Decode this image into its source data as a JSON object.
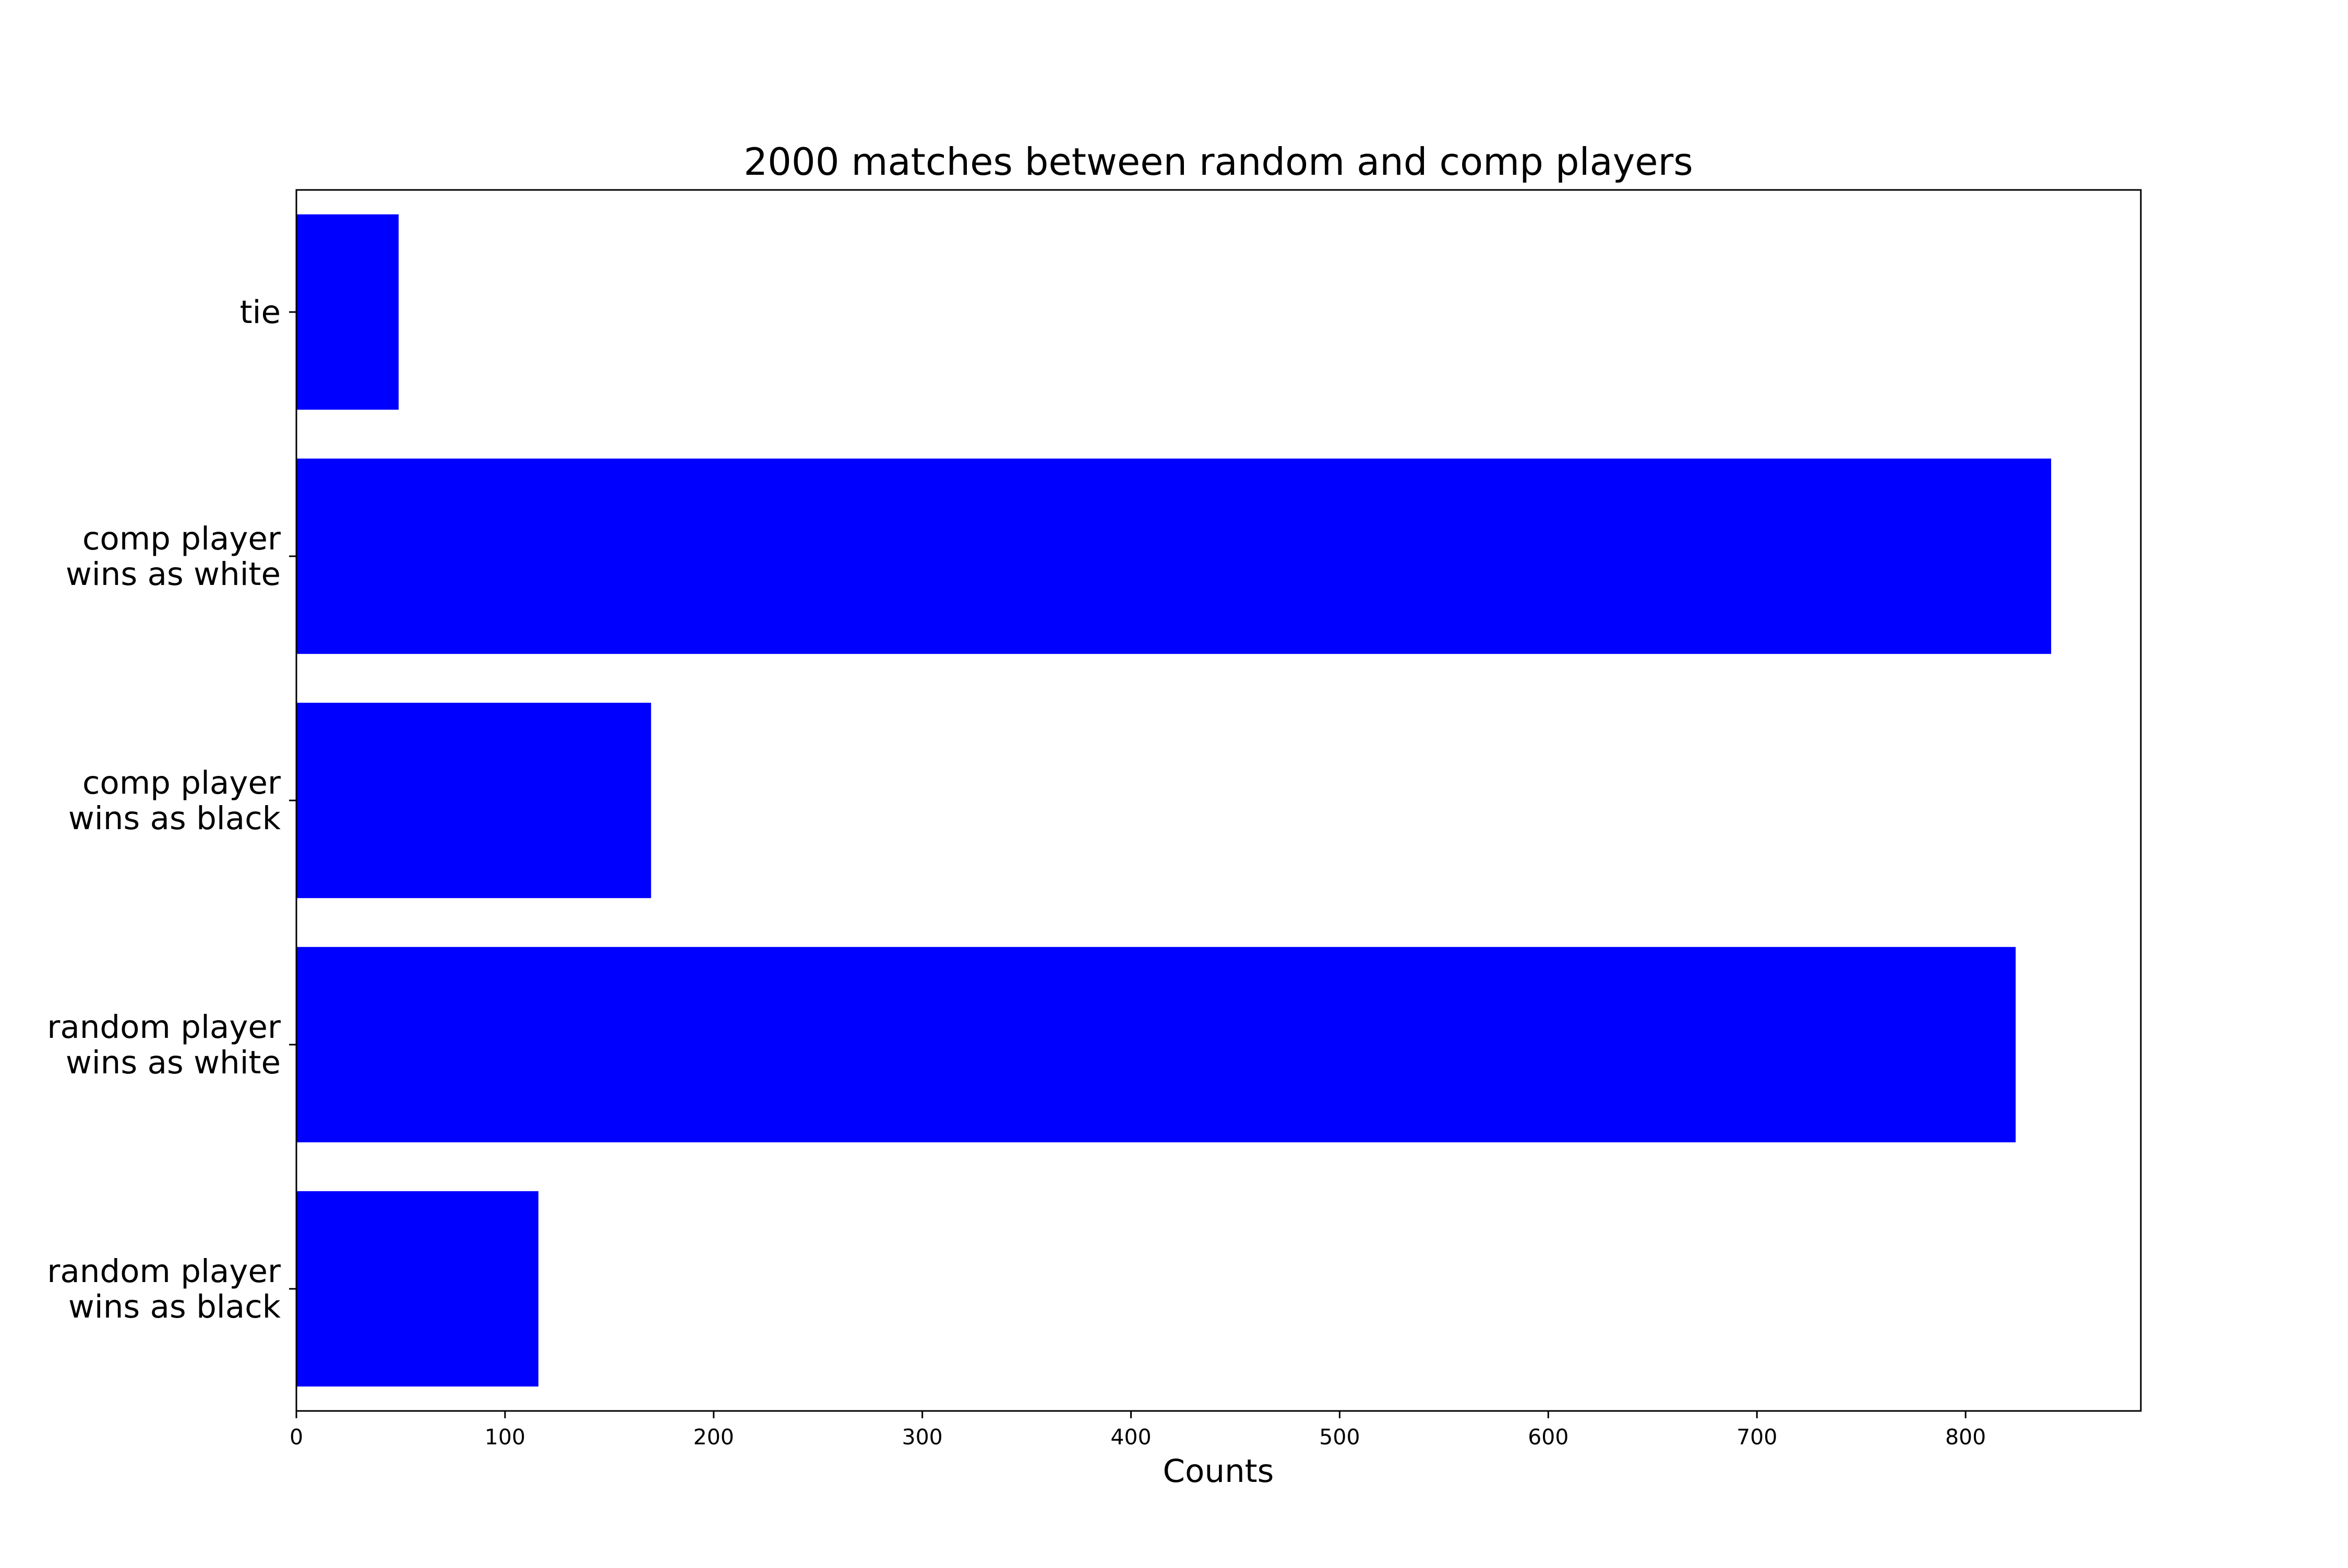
{
  "chart_data": {
    "type": "bar",
    "orientation": "horizontal",
    "title": "2000 matches between random and comp players",
    "xlabel": "Counts",
    "ylabel": "",
    "categories": [
      "tie",
      "comp player\nwins as white",
      "comp player\nwins as black",
      "random player\nwins as white",
      "random player\nwins as black"
    ],
    "values": [
      49,
      841,
      170,
      824,
      116
    ],
    "xlim": [
      0,
      884
    ],
    "xticks": [
      0,
      100,
      200,
      300,
      400,
      500,
      600,
      700,
      800
    ],
    "grid": false,
    "legend": "none",
    "bar_color": "#0000ff",
    "axes_color": "#000000"
  }
}
